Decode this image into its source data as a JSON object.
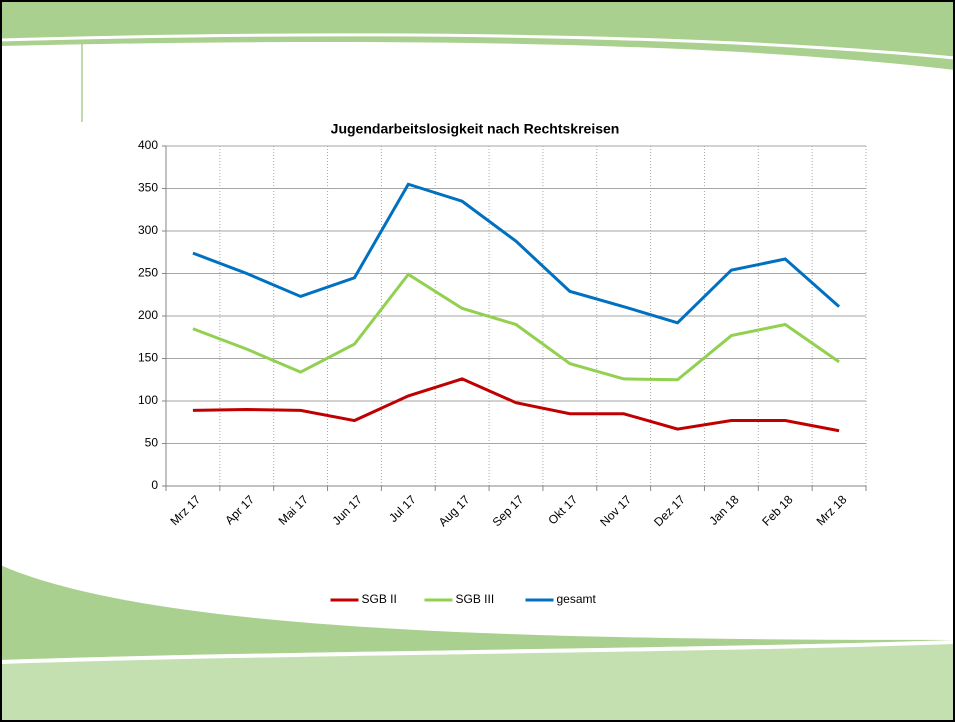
{
  "chart_data": {
    "type": "line",
    "title": "Jugendarbeitslosigkeit nach Rechtskreisen",
    "categories": [
      "Mrz 17",
      "Apr 17",
      "Mai 17",
      "Jun 17",
      "Jul 17",
      "Aug 17",
      "Sep 17",
      "Okt 17",
      "Nov 17",
      "Dez 17",
      "Jan 18",
      "Feb 18",
      "Mrz 18"
    ],
    "series": [
      {
        "name": "SGB II",
        "color": "#c00000",
        "values": [
          89,
          90,
          89,
          77,
          106,
          126,
          98,
          85,
          85,
          67,
          77,
          77,
          65
        ]
      },
      {
        "name": "SGB III",
        "color": "#92d050",
        "values": [
          185,
          161,
          134,
          167,
          249,
          209,
          190,
          144,
          126,
          125,
          177,
          190,
          146
        ]
      },
      {
        "name": "gesamt",
        "color": "#0070c0",
        "values": [
          274,
          250,
          223,
          245,
          355,
          335,
          288,
          229,
          211,
          192,
          254,
          267,
          211
        ]
      }
    ],
    "ylim": [
      0,
      400
    ],
    "yticks": [
      0,
      50,
      100,
      150,
      200,
      250,
      300,
      350,
      400
    ],
    "grid": true,
    "legend": "bottom"
  }
}
